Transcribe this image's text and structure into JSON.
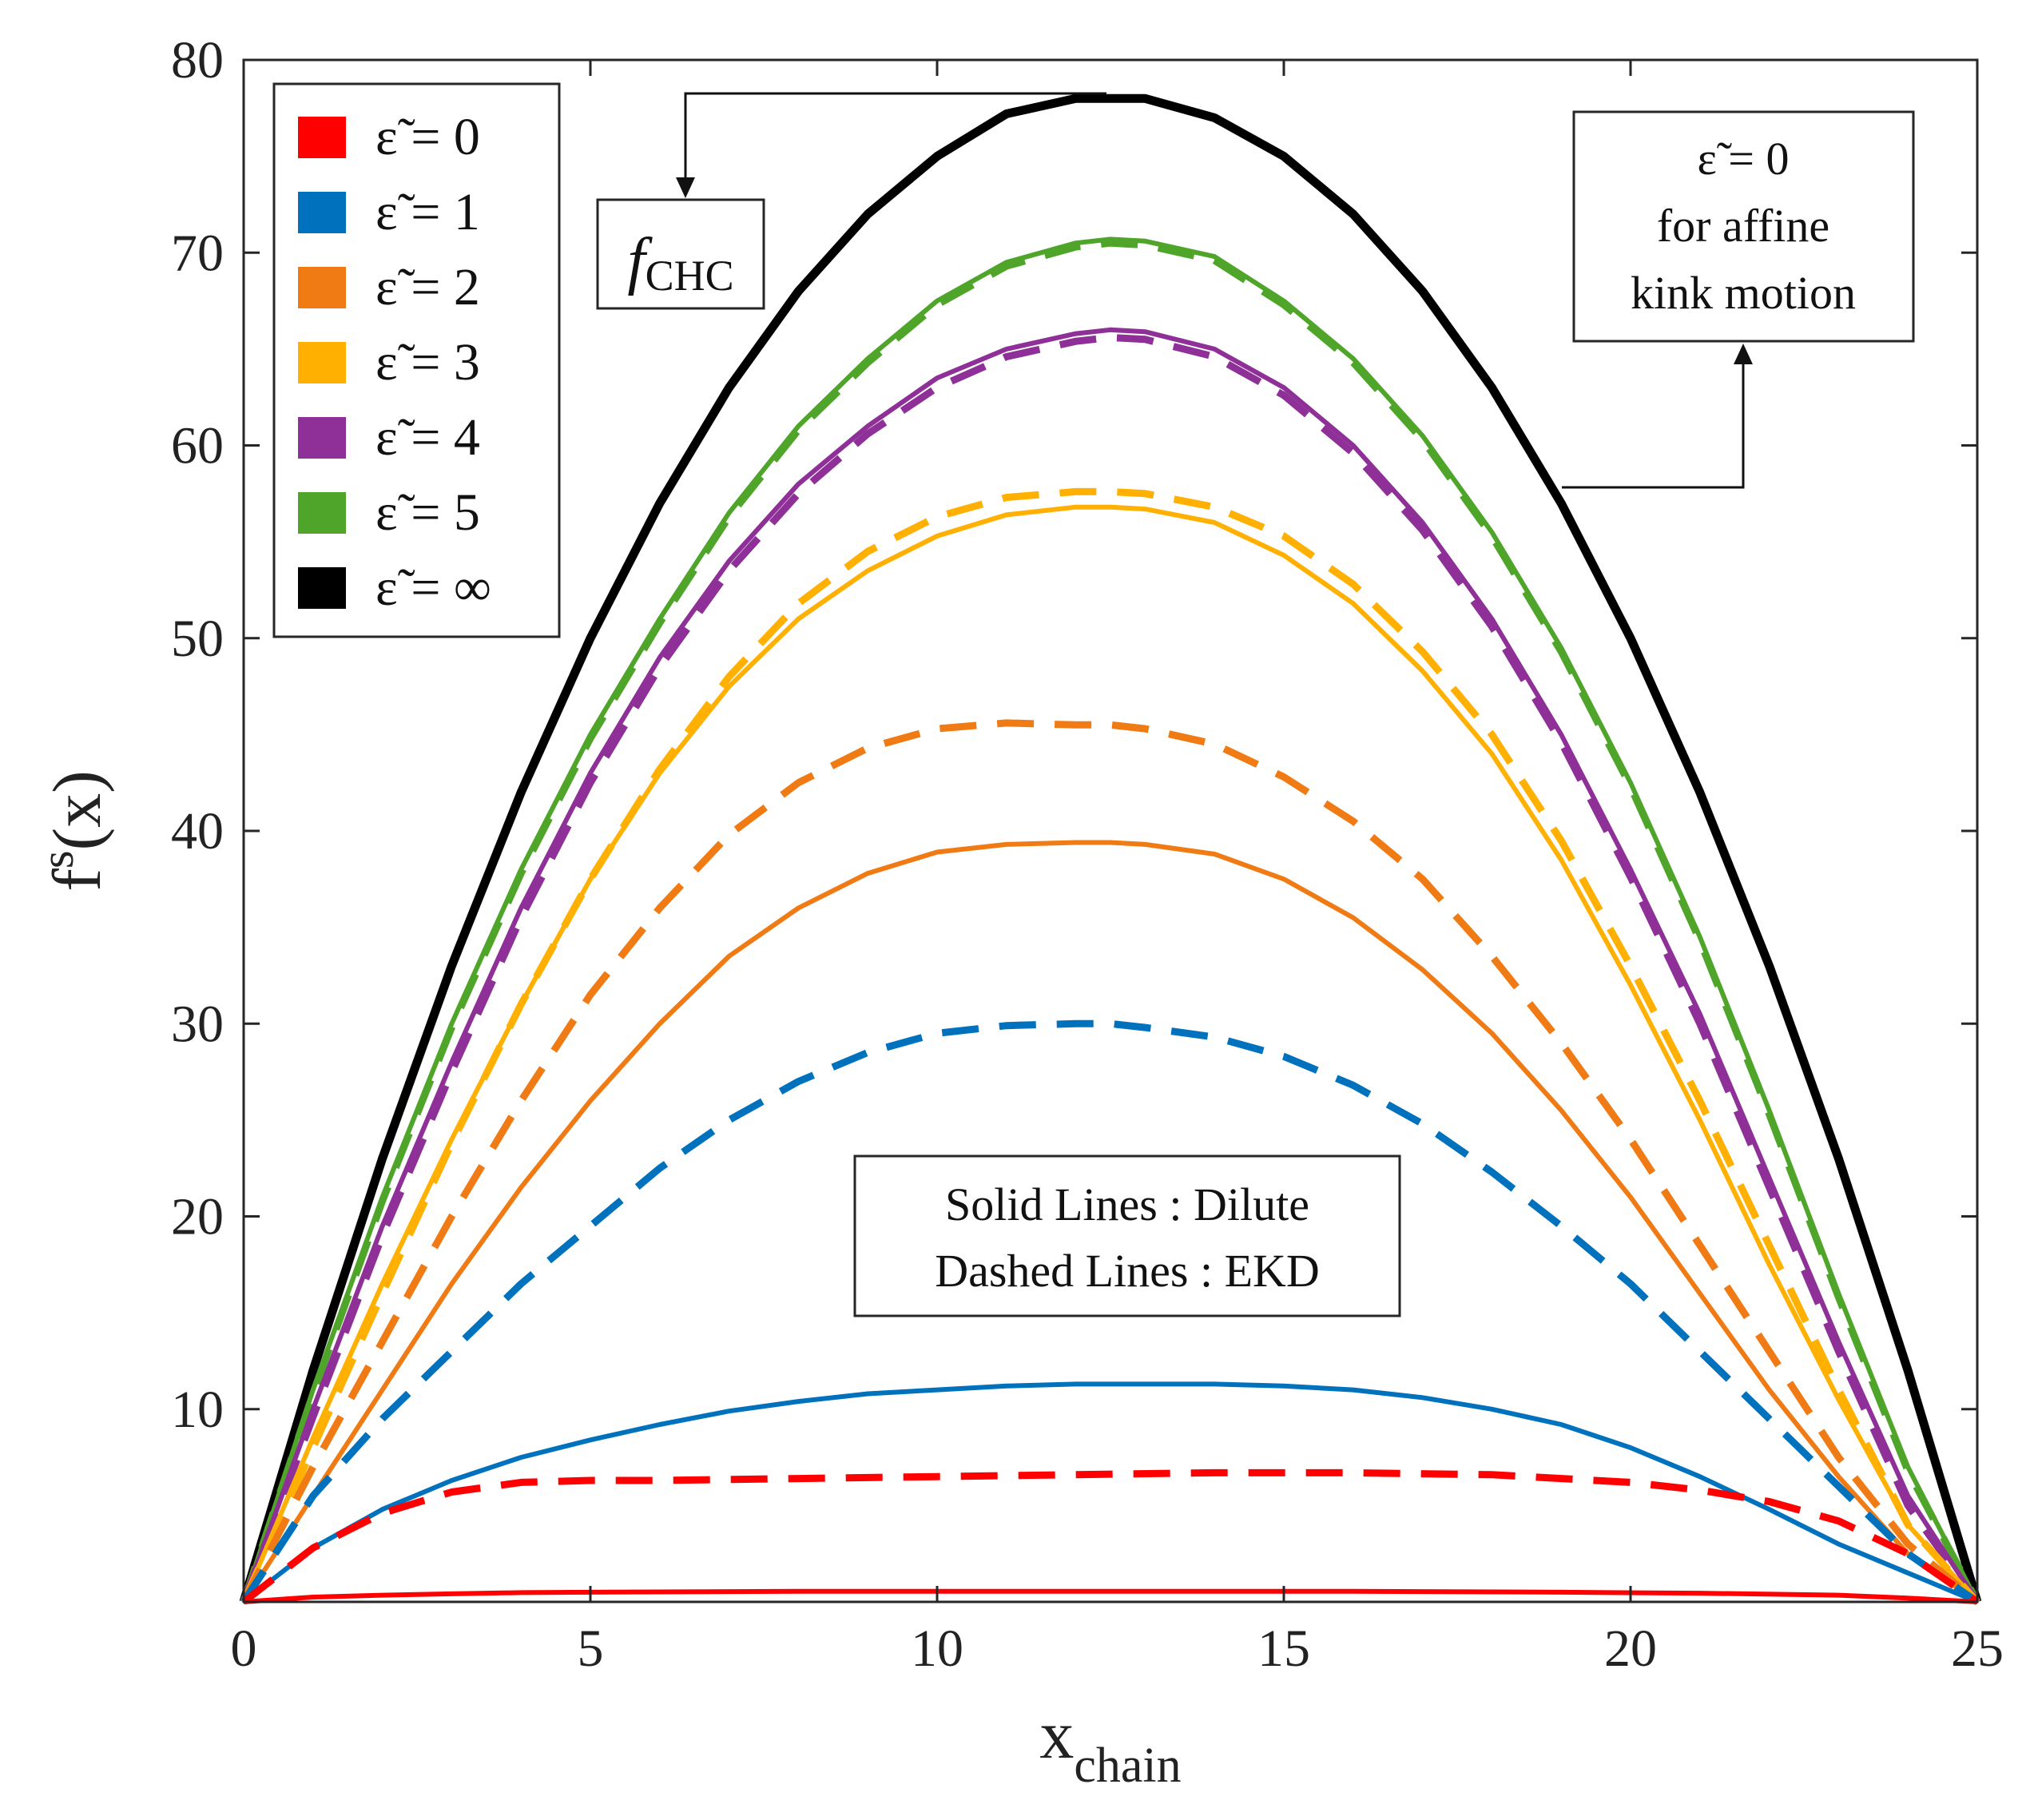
{
  "chart_data": {
    "type": "line",
    "xlabel": "x",
    "xlabel_sub": "chain",
    "ylabel": "f",
    "ylabel_sup": "s",
    "ylabel_suffix": "(x)",
    "xlim": [
      0,
      25
    ],
    "ylim": [
      0,
      80
    ],
    "xticks": [
      0,
      5,
      10,
      15,
      20,
      25
    ],
    "yticks": [
      10,
      20,
      30,
      40,
      50,
      60,
      70,
      80
    ],
    "legend": {
      "position": "top-left",
      "entries": [
        {
          "label": "ε̃ = 0",
          "color": "#ff0000"
        },
        {
          "label": "ε̃ = 1",
          "color": "#0072bd"
        },
        {
          "label": "ε̃ = 2",
          "color": "#f07b15"
        },
        {
          "label": "ε̃ = 3",
          "color": "#ffb000"
        },
        {
          "label": "ε̃ = 4",
          "color": "#8e3097"
        },
        {
          "label": "ε̃ = 5",
          "color": "#4fa52a"
        },
        {
          "label": "ε̃ = ∞",
          "color": "#000000"
        }
      ]
    },
    "annotations": {
      "fchc": {
        "main": "f",
        "sub": "CHC"
      },
      "affine": [
        "ε̃ = 0",
        "for affine",
        "kink motion"
      ],
      "line_styles": [
        "Solid Lines : Dilute",
        "Dashed Lines : EKD"
      ]
    },
    "series": [
      {
        "name": "ε̃ = ∞",
        "style": "solid",
        "color": "#000000",
        "width": 11,
        "x": [
          0,
          1,
          2,
          3,
          4,
          5,
          6,
          7,
          8,
          9,
          10,
          11,
          12,
          12.5,
          13,
          14,
          15,
          16,
          17,
          18,
          19,
          20,
          21,
          22,
          23,
          24,
          25
        ],
        "y": [
          0,
          12,
          23,
          33,
          42,
          50,
          57,
          63,
          68,
          72,
          75,
          77.2,
          78,
          78,
          78,
          77,
          75,
          72,
          68,
          63,
          57,
          50,
          42,
          33,
          23,
          12,
          0
        ]
      },
      {
        "name": "ε̃ = 5 Dilute",
        "style": "solid",
        "color": "#4fa52a",
        "width": 6,
        "x": [
          0,
          1,
          2,
          3,
          4,
          5,
          6,
          7,
          8,
          9,
          10,
          11,
          12,
          12.5,
          13,
          14,
          15,
          16,
          17,
          18,
          19,
          20,
          21,
          22,
          23,
          24,
          25
        ],
        "y": [
          0,
          11,
          21,
          30,
          38,
          45,
          51,
          56.5,
          61,
          64.5,
          67.5,
          69.5,
          70.5,
          70.7,
          70.6,
          69.8,
          67.5,
          64.5,
          60.5,
          55.5,
          49.5,
          42.5,
          34.5,
          25.5,
          16,
          7,
          0
        ]
      },
      {
        "name": "ε̃ = 5 EKD",
        "style": "dashed",
        "color": "#4fa52a",
        "width": 9,
        "x": [
          0,
          1,
          2,
          3,
          4,
          5,
          6,
          7,
          8,
          9,
          10,
          11,
          12,
          12.5,
          13,
          14,
          15,
          16,
          17,
          18,
          19,
          20,
          21,
          22,
          23,
          24,
          25
        ],
        "y": [
          0,
          10.8,
          20.8,
          29.8,
          37.8,
          44.8,
          50.8,
          56.3,
          60.8,
          64.3,
          67.3,
          69.3,
          70.3,
          70.5,
          70.4,
          69.6,
          67.3,
          64.3,
          60.3,
          55.3,
          49.3,
          42.3,
          34.3,
          25.3,
          15.8,
          6.8,
          0
        ]
      },
      {
        "name": "ε̃ = 4 Dilute",
        "style": "solid",
        "color": "#8e3097",
        "width": 6,
        "x": [
          0,
          1,
          2,
          3,
          4,
          5,
          6,
          7,
          8,
          9,
          10,
          11,
          12,
          12.5,
          13,
          14,
          15,
          16,
          17,
          18,
          19,
          20,
          21,
          22,
          23,
          24,
          25
        ],
        "y": [
          0,
          10,
          19.5,
          28,
          36,
          43,
          49,
          54,
          58,
          61,
          63.5,
          65,
          65.8,
          66,
          65.9,
          65,
          63,
          60,
          56,
          51,
          45,
          38,
          30.5,
          22,
          13.5,
          5.5,
          0
        ]
      },
      {
        "name": "ε̃ = 4 EKD",
        "style": "dashed",
        "color": "#8e3097",
        "width": 9,
        "x": [
          0,
          1,
          2,
          3,
          4,
          5,
          6,
          7,
          8,
          9,
          10,
          11,
          12,
          12.5,
          13,
          14,
          15,
          16,
          17,
          18,
          19,
          20,
          21,
          22,
          23,
          24,
          25
        ],
        "y": [
          0,
          9.6,
          19,
          27.5,
          35.5,
          42.5,
          48.5,
          53.5,
          57.5,
          60.6,
          63,
          64.6,
          65.4,
          65.6,
          65.5,
          64.6,
          62.6,
          59.6,
          55.6,
          50.6,
          44.6,
          37.6,
          30,
          21.5,
          13,
          5,
          0
        ]
      },
      {
        "name": "ε̃ = 3 Dilute",
        "style": "solid",
        "color": "#ffb000",
        "width": 6,
        "x": [
          0,
          1,
          2,
          3,
          4,
          5,
          6,
          7,
          8,
          9,
          10,
          11,
          12,
          12.5,
          13,
          14,
          15,
          16,
          17,
          18,
          19,
          20,
          21,
          22,
          23,
          24,
          25
        ],
        "y": [
          0,
          8.5,
          16.5,
          24,
          31,
          37.5,
          43,
          47.5,
          51,
          53.5,
          55.3,
          56.4,
          56.8,
          56.8,
          56.7,
          56,
          54.3,
          51.8,
          48.3,
          44,
          38.5,
          32,
          25,
          17.5,
          10.5,
          4,
          0
        ]
      },
      {
        "name": "ε̃ = 3 EKD",
        "style": "dashed",
        "color": "#ffb000",
        "width": 9,
        "x": [
          0,
          1,
          2,
          3,
          4,
          5,
          6,
          7,
          8,
          9,
          10,
          11,
          12,
          12.5,
          13,
          14,
          15,
          16,
          17,
          18,
          19,
          20,
          21,
          22,
          23,
          24,
          25
        ],
        "y": [
          0,
          8,
          16,
          23.8,
          31,
          37.5,
          43.2,
          48,
          51.8,
          54.5,
          56.3,
          57.3,
          57.6,
          57.6,
          57.5,
          56.8,
          55.3,
          52.8,
          49.3,
          45,
          39.5,
          33,
          26,
          18.5,
          11,
          4,
          0
        ]
      },
      {
        "name": "ε̃ = 2 Dilute",
        "style": "solid",
        "color": "#f07b15",
        "width": 6,
        "x": [
          0,
          1,
          2,
          3,
          4,
          5,
          6,
          7,
          8,
          9,
          10,
          11,
          12,
          12.5,
          13,
          14,
          15,
          16,
          17,
          18,
          19,
          20,
          21,
          22,
          23,
          24,
          25
        ],
        "y": [
          0,
          5.5,
          11,
          16.5,
          21.5,
          26,
          30,
          33.5,
          36,
          37.8,
          38.9,
          39.3,
          39.4,
          39.4,
          39.3,
          38.8,
          37.5,
          35.5,
          32.8,
          29.5,
          25.5,
          21,
          16,
          11,
          6.5,
          2.5,
          0
        ]
      },
      {
        "name": "ε̃ = 2 EKD",
        "style": "dashed",
        "color": "#f07b15",
        "width": 9,
        "x": [
          0,
          1,
          2,
          3,
          4,
          5,
          6,
          7,
          8,
          9,
          10,
          11,
          12,
          12.5,
          13,
          14,
          15,
          16,
          17,
          18,
          19,
          20,
          21,
          22,
          23,
          24,
          25
        ],
        "y": [
          0,
          7,
          13.5,
          20,
          26,
          31.5,
          36,
          39.8,
          42.5,
          44.3,
          45.3,
          45.6,
          45.5,
          45.5,
          45.3,
          44.5,
          42.8,
          40.5,
          37.5,
          33.5,
          29,
          24,
          18.5,
          13,
          7.5,
          3,
          0
        ]
      },
      {
        "name": "ε̃ = 1 Dilute",
        "style": "solid",
        "color": "#0072bd",
        "width": 6,
        "x": [
          0,
          1,
          2,
          3,
          4,
          5,
          6,
          7,
          8,
          9,
          10,
          11,
          12,
          13,
          14,
          15,
          16,
          17,
          18,
          19,
          20,
          21,
          22,
          23,
          24,
          25
        ],
        "y": [
          0,
          2.8,
          4.8,
          6.3,
          7.5,
          8.4,
          9.2,
          9.9,
          10.4,
          10.8,
          11,
          11.2,
          11.3,
          11.3,
          11.3,
          11.2,
          11,
          10.6,
          10,
          9.2,
          8,
          6.5,
          4.8,
          3,
          1.5,
          0
        ]
      },
      {
        "name": "ε̃ = 1 EKD",
        "style": "dashed",
        "color": "#0072bd",
        "width": 9,
        "x": [
          0,
          1,
          2,
          3,
          4,
          5,
          6,
          7,
          8,
          9,
          10,
          11,
          12,
          12.5,
          13,
          14,
          15,
          16,
          17,
          18,
          19,
          20,
          21,
          22,
          23,
          24,
          25
        ],
        "y": [
          0,
          5.5,
          9.5,
          13,
          16.5,
          19.5,
          22.5,
          25,
          27,
          28.5,
          29.5,
          29.9,
          30,
          30,
          29.8,
          29.3,
          28.3,
          26.8,
          24.8,
          22.3,
          19.5,
          16.5,
          13,
          9.5,
          6,
          2.5,
          0
        ]
      },
      {
        "name": "ε̃ = 0 Dilute",
        "style": "solid",
        "color": "#ff0000",
        "width": 6,
        "x": [
          0,
          1,
          2,
          3,
          4,
          5,
          8,
          12,
          16,
          19,
          21,
          23,
          24,
          25
        ],
        "y": [
          0,
          0.25,
          0.35,
          0.42,
          0.48,
          0.5,
          0.55,
          0.55,
          0.55,
          0.5,
          0.45,
          0.35,
          0.2,
          0
        ]
      },
      {
        "name": "ε̃ = 0 EKD",
        "style": "dashed",
        "color": "#ff0000",
        "width": 9,
        "x": [
          0,
          1,
          2,
          3,
          4,
          5,
          6,
          8,
          10,
          12,
          14,
          16,
          18,
          20,
          21,
          22,
          23,
          24,
          25
        ],
        "y": [
          0,
          2.8,
          4.6,
          5.7,
          6.2,
          6.3,
          6.3,
          6.4,
          6.5,
          6.6,
          6.7,
          6.7,
          6.6,
          6.2,
          5.8,
          5.2,
          4.2,
          2.5,
          0
        ]
      }
    ]
  }
}
